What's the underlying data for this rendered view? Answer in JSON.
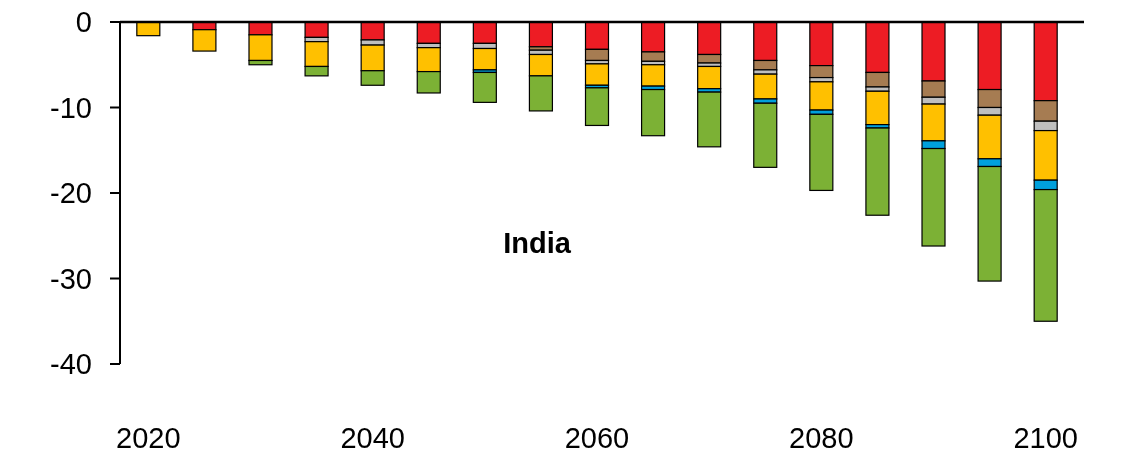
{
  "chart_data": {
    "type": "bar",
    "stacked": true,
    "categories": [
      "2020",
      null,
      null,
      null,
      "2040",
      null,
      null,
      null,
      "2060",
      null,
      null,
      null,
      "2080",
      null,
      null,
      null,
      "2100"
    ],
    "series": [
      {
        "color": "#ed1c24",
        "values": [
          null,
          -0.9,
          -1.5,
          -1.8,
          -2.1,
          -2.5,
          -2.5,
          -2.9,
          -3.2,
          -3.5,
          -3.8,
          -4.5,
          -5.1,
          -5.9,
          -6.9,
          -7.9,
          -9.2
        ]
      },
      {
        "color": "#a67c52",
        "values": [
          0,
          0,
          0,
          0,
          0,
          0,
          0,
          -0.4,
          -1.3,
          -1.1,
          -1.0,
          -1.1,
          -1.4,
          -1.7,
          -1.9,
          -2.1,
          -2.4
        ]
      },
      {
        "color": "#bfbfbf",
        "values": [
          0,
          0,
          0,
          -0.5,
          -0.6,
          -0.5,
          -0.6,
          -0.5,
          -0.4,
          -0.4,
          -0.4,
          -0.5,
          -0.5,
          -0.5,
          -0.8,
          -0.9,
          -1.1
        ]
      },
      {
        "color": "#ffc000",
        "values": [
          -1.6,
          -2.5,
          -3.0,
          -2.9,
          -3.0,
          -2.8,
          -2.5,
          -2.5,
          -2.5,
          -2.5,
          -2.6,
          -2.9,
          -3.3,
          -3.9,
          -4.3,
          -5.1,
          -5.8
        ]
      },
      {
        "color": "#00a0dc",
        "values": [
          0,
          0,
          0,
          0,
          0,
          0,
          -0.3,
          null,
          -0.3,
          -0.4,
          -0.4,
          -0.5,
          -0.5,
          -0.4,
          -0.9,
          -0.9,
          -1.1
        ]
      },
      {
        "color": "#7cb135",
        "values": [
          0,
          0,
          -0.5,
          -1.1,
          -1.7,
          -2.5,
          -3.5,
          -4.1,
          -4.4,
          -5.4,
          -6.4,
          -7.5,
          -8.9,
          -10.2,
          -11.4,
          -13.4,
          -15.4
        ]
      }
    ],
    "ylim": [
      -40,
      0
    ],
    "yticks": [
      -40,
      -30,
      -20,
      -10,
      0
    ],
    "annotations": [
      "India"
    ]
  }
}
